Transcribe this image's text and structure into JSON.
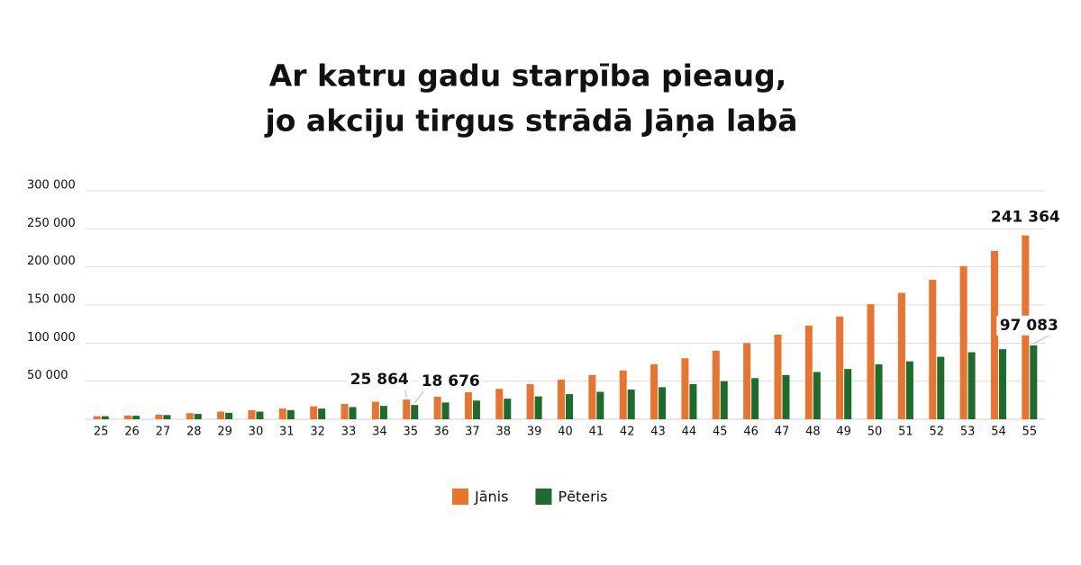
{
  "chart_data": {
    "type": "bar",
    "title": [
      "Ar katru gadu starpība pieaug,",
      "jo akciju tirgus strādā Jāņa labā"
    ],
    "categories": [
      "25",
      "26",
      "27",
      "28",
      "29",
      "30",
      "31",
      "32",
      "33",
      "34",
      "35",
      "36",
      "37",
      "38",
      "39",
      "40",
      "41",
      "42",
      "43",
      "44",
      "45",
      "46",
      "47",
      "48",
      "49",
      "50",
      "51",
      "52",
      "53",
      "54",
      "55"
    ],
    "series": [
      {
        "name": "Jānis",
        "color": "#e8742f",
        "values": [
          4000,
          5000,
          6000,
          8000,
          10000,
          12000,
          14000,
          17000,
          20000,
          23000,
          25864,
          29500,
          35400,
          40000,
          46000,
          52000,
          58000,
          64000,
          72000,
          80000,
          90000,
          100000,
          111000,
          123000,
          135000,
          151000,
          166000,
          183000,
          201000,
          221000,
          241364
        ],
        "value_labels": [
          null,
          null,
          null,
          null,
          null,
          null,
          null,
          null,
          null,
          null,
          "25 864",
          null,
          null,
          null,
          null,
          null,
          null,
          null,
          null,
          null,
          null,
          null,
          null,
          null,
          null,
          null,
          null,
          null,
          null,
          null,
          "241 364"
        ]
      },
      {
        "name": "Pēteris",
        "color": "#1e6b2e",
        "values": [
          4000,
          4500,
          5500,
          7000,
          8500,
          10000,
          12000,
          14000,
          16000,
          17500,
          18676,
          22000,
          24500,
          27000,
          30000,
          33000,
          36000,
          39000,
          42000,
          46000,
          50000,
          54000,
          58000,
          62000,
          66000,
          72000,
          76000,
          82000,
          88000,
          92000,
          97083
        ],
        "value_labels": [
          null,
          null,
          null,
          null,
          null,
          null,
          null,
          null,
          null,
          null,
          "18 676",
          null,
          null,
          null,
          null,
          null,
          null,
          null,
          null,
          null,
          null,
          null,
          null,
          null,
          null,
          null,
          null,
          null,
          null,
          null,
          "97 083"
        ]
      }
    ],
    "ylim": [
      0,
      300000
    ],
    "yticks": [
      {
        "value": 50000,
        "label": "50 000"
      },
      {
        "value": 100000,
        "label": "100 000"
      },
      {
        "value": 150000,
        "label": "150 000"
      },
      {
        "value": 200000,
        "label": "200 000"
      },
      {
        "value": 250000,
        "label": "250 000"
      },
      {
        "value": 300000,
        "label": "300 000"
      }
    ],
    "grid": true
  }
}
